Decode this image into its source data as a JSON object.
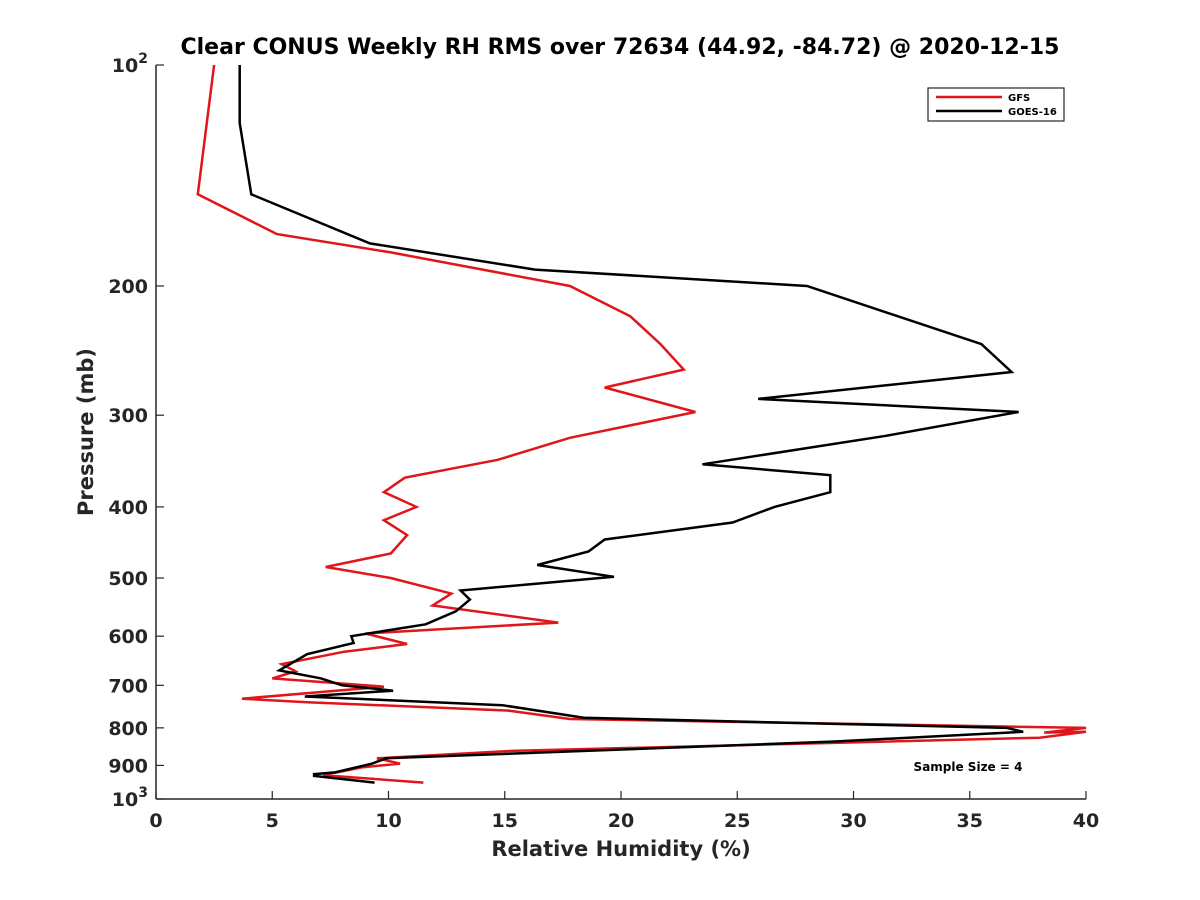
{
  "chart_data": {
    "type": "line",
    "title": "Clear CONUS Weekly RH RMS over 72634 (44.92, -84.72) @ 2020-12-15",
    "xlabel": "Relative Humidity (%)",
    "ylabel": "Pressure (mb)",
    "xlim": [
      0,
      40
    ],
    "ylim": [
      100,
      1000
    ],
    "yscale": "log",
    "yreversed": true,
    "grid": false,
    "x_ticks": [
      {
        "value": 0,
        "label": "0"
      },
      {
        "value": 5,
        "label": "5"
      },
      {
        "value": 10,
        "label": "10"
      },
      {
        "value": 15,
        "label": "15"
      },
      {
        "value": 20,
        "label": "20"
      },
      {
        "value": 25,
        "label": "25"
      },
      {
        "value": 30,
        "label": "30"
      },
      {
        "value": 35,
        "label": "35"
      },
      {
        "value": 40,
        "label": "40"
      }
    ],
    "y_ticks": [
      {
        "value": 100,
        "label": "10",
        "sup": "2"
      },
      {
        "value": 200,
        "label": "200",
        "sup": ""
      },
      {
        "value": 300,
        "label": "300",
        "sup": ""
      },
      {
        "value": 400,
        "label": "400",
        "sup": ""
      },
      {
        "value": 500,
        "label": "500",
        "sup": ""
      },
      {
        "value": 600,
        "label": "600",
        "sup": ""
      },
      {
        "value": 700,
        "label": "700",
        "sup": ""
      },
      {
        "value": 800,
        "label": "800",
        "sup": ""
      },
      {
        "value": 900,
        "label": "900",
        "sup": ""
      },
      {
        "value": 1000,
        "label": "10",
        "sup": "3"
      }
    ],
    "legend_position": "top-right",
    "annotation": "Sample Size = 4",
    "series": [
      {
        "name": "GFS",
        "color": "#e0161a",
        "points": [
          [
            2.5,
            100
          ],
          [
            1.8,
            150
          ],
          [
            5.2,
            170
          ],
          [
            10.1,
            180
          ],
          [
            17.8,
            200
          ],
          [
            20.4,
            220
          ],
          [
            21.7,
            240
          ],
          [
            22.7,
            260
          ],
          [
            19.3,
            275
          ],
          [
            23.2,
            297
          ],
          [
            17.8,
            322
          ],
          [
            14.7,
            345
          ],
          [
            10.7,
            365
          ],
          [
            9.8,
            382
          ],
          [
            11.2,
            400
          ],
          [
            9.8,
            417
          ],
          [
            10.8,
            437
          ],
          [
            10.1,
            463
          ],
          [
            7.3,
            483
          ],
          [
            10.1,
            500
          ],
          [
            12.7,
            525
          ],
          [
            11.9,
            545
          ],
          [
            17.3,
            575
          ],
          [
            9.0,
            595
          ],
          [
            10.8,
            615
          ],
          [
            8.1,
            630
          ],
          [
            5.4,
            655
          ],
          [
            6.0,
            670
          ],
          [
            5.0,
            685
          ],
          [
            9.8,
            703
          ],
          [
            3.7,
            730
          ],
          [
            6.5,
            738
          ],
          [
            15.2,
            758
          ],
          [
            17.8,
            778
          ],
          [
            40.0,
            800
          ],
          [
            38.2,
            812
          ],
          [
            40.0,
            810
          ],
          [
            38.0,
            825
          ],
          [
            15.3,
            860
          ],
          [
            9.5,
            880
          ],
          [
            10.5,
            895
          ],
          [
            8.9,
            905
          ],
          [
            7.2,
            928
          ],
          [
            11.5,
            950
          ]
        ]
      },
      {
        "name": "GOES-16",
        "color": "#000000",
        "points": [
          [
            3.6,
            100
          ],
          [
            3.6,
            120
          ],
          [
            4.1,
            150
          ],
          [
            9.2,
            175
          ],
          [
            16.3,
            190
          ],
          [
            28.0,
            200
          ],
          [
            35.5,
            240
          ],
          [
            36.8,
            262
          ],
          [
            25.9,
            285
          ],
          [
            37.1,
            297
          ],
          [
            31.4,
            320
          ],
          [
            23.5,
            350
          ],
          [
            29.0,
            362
          ],
          [
            29.0,
            382
          ],
          [
            26.6,
            400
          ],
          [
            24.8,
            420
          ],
          [
            19.3,
            443
          ],
          [
            18.6,
            460
          ],
          [
            16.4,
            480
          ],
          [
            19.7,
            498
          ],
          [
            13.1,
            520
          ],
          [
            13.5,
            535
          ],
          [
            12.9,
            555
          ],
          [
            11.6,
            578
          ],
          [
            8.4,
            600
          ],
          [
            8.5,
            613
          ],
          [
            6.5,
            635
          ],
          [
            5.3,
            668
          ],
          [
            7.1,
            685
          ],
          [
            8.0,
            700
          ],
          [
            10.2,
            712
          ],
          [
            6.4,
            725
          ],
          [
            14.9,
            745
          ],
          [
            18.4,
            775
          ],
          [
            29.2,
            790
          ],
          [
            36.6,
            800
          ],
          [
            37.3,
            810
          ],
          [
            29.2,
            835
          ],
          [
            9.9,
            880
          ],
          [
            9.3,
            895
          ],
          [
            7.7,
            920
          ],
          [
            6.8,
            925
          ],
          [
            6.8,
            930
          ],
          [
            9.4,
            950
          ]
        ]
      }
    ]
  }
}
